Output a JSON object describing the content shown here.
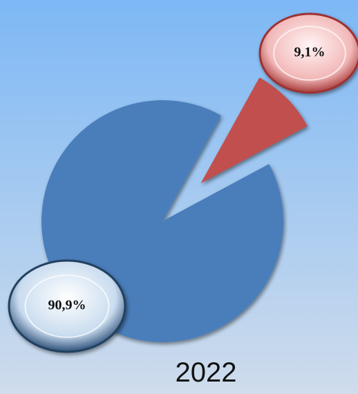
{
  "chart_data": {
    "type": "pie",
    "title": "2022",
    "values": [
      9.1,
      90.9
    ],
    "value_labels": [
      "9,1%",
      "90,9%"
    ],
    "colors": [
      "#c0504d",
      "#4a7ebb"
    ]
  }
}
